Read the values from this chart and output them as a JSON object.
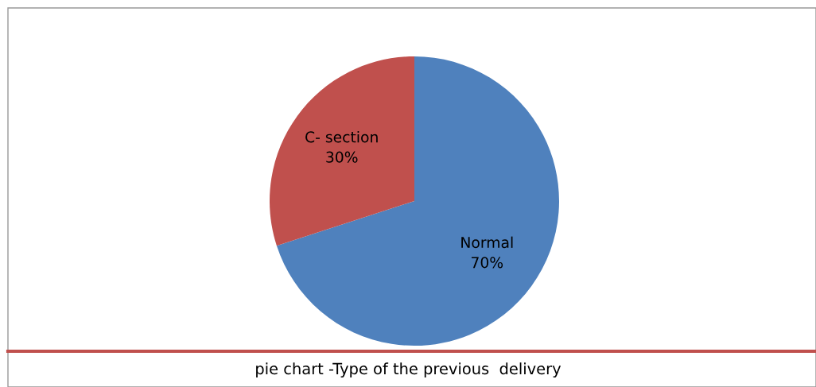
{
  "chart_data": {
    "type": "pie",
    "title": "pie chart -Type of the previous  delivery",
    "categories": [
      "Normal",
      "C- section"
    ],
    "values": [
      70,
      30
    ],
    "value_labels": [
      "70%",
      "30%"
    ],
    "colors": [
      "#4f81bd",
      "#c0504d"
    ]
  }
}
